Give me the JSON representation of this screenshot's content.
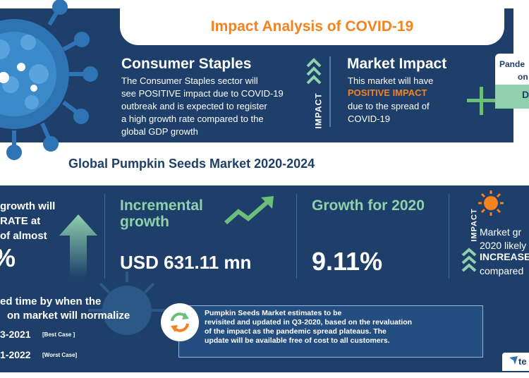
{
  "title": "Impact Analysis of COVID-19",
  "consumer": {
    "heading": "Consumer Staples",
    "lines": [
      "The Consumer Staples sector will",
      "see POSITIVE impact due to COVID-19",
      "outbreak and is expected to register",
      "a high growth rate compared to the",
      "global GDP growth"
    ]
  },
  "impact_label": "IMPACT",
  "market": {
    "heading": "Market Impact",
    "line1": "This market will have",
    "positive": "POSITIVE IMPACT",
    "line2": "due to the spread of",
    "line3": "COVID-19"
  },
  "pandemic": {
    "line1": "Pande",
    "line2": "on",
    "value": "D"
  },
  "middle_title": "Global Pumpkin Seeds Market 2020-2024",
  "growth": {
    "line1": "growth will",
    "line2": "RATE at",
    "line3": "of almost",
    "value": "%"
  },
  "incremental": {
    "line1": "Incremental",
    "line2": "growth",
    "value": "USD 631.11 mn"
  },
  "growth2020": {
    "label": "Growth for 2020",
    "value": "9.11%"
  },
  "right_panel": {
    "impact_label": "IMPACT",
    "line1": "Market gr",
    "line2": "2020 likely",
    "increase": "INCREASE",
    "compared": "compared"
  },
  "estimated": {
    "line1": "ed time by when the",
    "line2": "on market will normalize",
    "best": "3-2021",
    "best_tag": "[Best Case ]",
    "worst": "1-2022",
    "worst_tag": "[Worst Case]"
  },
  "note": {
    "lines": [
      "Pumpkin Seeds Market estimates to be",
      "revisited and updated in Q3-2020, based on the revaluation",
      "of the impact as the pandemic spread plateaus. The",
      "update will be available free of cost to all customers."
    ]
  },
  "brand": "te",
  "colors": {
    "navy": "#1d3f6a",
    "orange": "#f5821f",
    "mint": "#8fd0ad",
    "green": "#6bbf7a"
  }
}
